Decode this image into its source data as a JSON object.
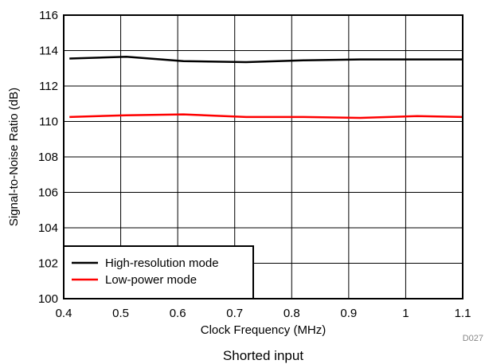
{
  "chart_data": {
    "type": "line",
    "xlabel": "Clock Frequency (MHz)",
    "ylabel": "Signal-to-Noise Ratio (dB)",
    "xlim": [
      0.4,
      1.1
    ],
    "ylim": [
      100,
      116
    ],
    "xticks": [
      "0.4",
      "0.5",
      "0.6",
      "0.7",
      "0.8",
      "0.9",
      "1",
      "1.1"
    ],
    "yticks": [
      "100",
      "102",
      "104",
      "106",
      "108",
      "110",
      "112",
      "114",
      "116"
    ],
    "grid": true,
    "legend_position": "bottom-left",
    "series": [
      {
        "name": "High-resolution mode",
        "color": "#000000",
        "x": [
          0.41,
          0.51,
          0.61,
          0.72,
          0.82,
          0.92,
          1.02,
          1.1
        ],
        "y": [
          113.55,
          113.65,
          113.4,
          113.35,
          113.45,
          113.5,
          113.5,
          113.5
        ]
      },
      {
        "name": "Low-power mode",
        "color": "#ff0000",
        "x": [
          0.41,
          0.51,
          0.61,
          0.72,
          0.82,
          0.92,
          1.02,
          1.1
        ],
        "y": [
          110.25,
          110.35,
          110.4,
          110.25,
          110.25,
          110.2,
          110.3,
          110.25
        ]
      }
    ]
  },
  "figure_id": "D027",
  "caption": "Shorted input"
}
